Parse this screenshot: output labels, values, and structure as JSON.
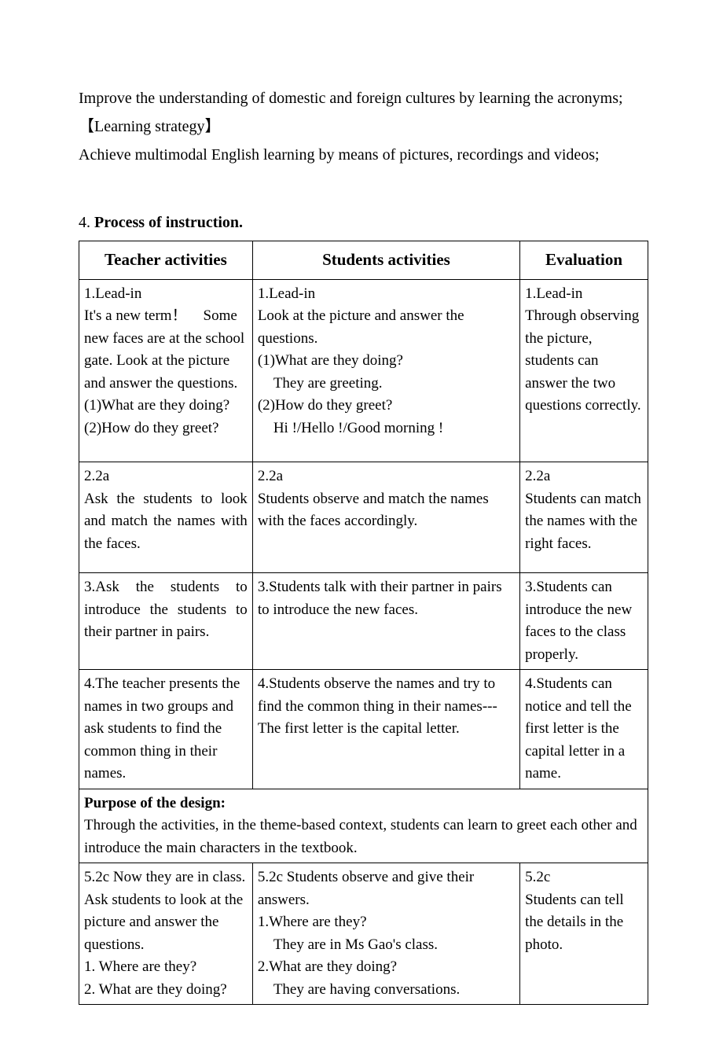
{
  "intro": {
    "culture_line": "Improve the understanding of domestic and foreign cultures by learning the acronyms;",
    "strategy_heading": "【Learning strategy】",
    "strategy_line": "Achieve multimodal English learning by means of pictures, recordings and videos;"
  },
  "section": {
    "number": "4.",
    "title": "Process of instruction."
  },
  "table": {
    "headers": {
      "col1": "Teacher activities",
      "col2": "Students activities",
      "col3": "Evaluation"
    },
    "rows": [
      {
        "teacher": "1.Lead-in\nIt's a new term！  Some new faces are at the school gate. Look at the picture and answer the questions.\n(1)What are they doing?\n(2)How do they greet?",
        "student": "1.Lead-in\nLook at the picture and answer the questions.\n(1)What are they doing?\n    They are greeting.\n(2)How do they greet?\n    Hi !/Hello !/Good morning !",
        "evaluation": "1.Lead-in\nThrough observing the picture, students can answer the two questions correctly."
      },
      {
        "teacher": "2.2a\nAsk the students to look and match the names with the faces.",
        "student": "2.2a\nStudents observe and match the names with the faces accordingly.",
        "evaluation": "2.2a\nStudents can match the names with the right faces."
      },
      {
        "teacher": "3.Ask the students to introduce the students to their partner in pairs.",
        "student": "3.Students talk with their partner in pairs to introduce the new faces.",
        "evaluation": "3.Students can introduce the new faces to the class properly."
      },
      {
        "teacher": "4.The teacher presents the names in two groups and ask students to find the common thing in their names.",
        "student": "4.Students observe the names and try to find the common thing in their names---The first letter is the capital letter.",
        "evaluation": "4.Students can notice and tell the first letter is the capital letter in a name."
      }
    ],
    "purpose": {
      "heading": "Purpose of the design:",
      "text": "Through the activities, in the theme-based context, students can learn to greet each other and introduce the main characters in the textbook."
    },
    "row5": {
      "teacher": "5.2c Now they are in class. Ask students to look at the picture and answer the questions.\n1. Where are they?\n2. What are they doing?",
      "student": "5.2c Students observe and give their answers.\n1.Where are they?\n    They are in Ms Gao's class.\n2.What are they doing?\n    They are having conversations.",
      "evaluation": "5.2c\nStudents can tell the details in the photo."
    }
  }
}
